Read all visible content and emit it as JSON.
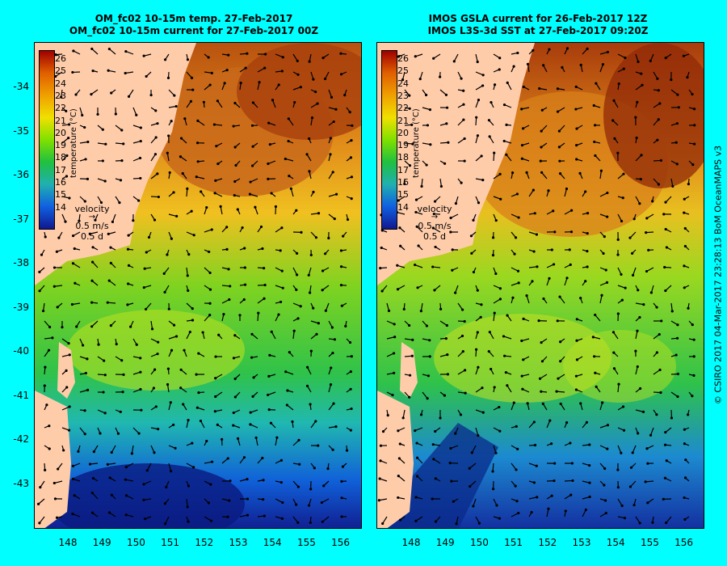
{
  "left_title": [
    "OM_fc02 10-15m temp. 27-Feb-2017",
    "OM_fc02 10-15m current for 27-Feb-2017 00Z"
  ],
  "right_title": [
    "IMOS GSLA current for 26-Feb-2017 12Z",
    "IMOS L3S-3d SST at 27-Feb-2017 09:20Z"
  ],
  "lat_ticks": [
    "-34",
    "-35",
    "-36",
    "-37",
    "-38",
    "-39",
    "-40",
    "-41",
    "-42",
    "-43"
  ],
  "lon_ticks": [
    "148",
    "149",
    "150",
    "151",
    "152",
    "153",
    "154",
    "155",
    "156"
  ],
  "colorbar": {
    "title": "temperature (°C)",
    "ticks": [
      "26",
      "25",
      "24",
      "23",
      "22",
      "21",
      "20",
      "19",
      "18",
      "17",
      "16",
      "15",
      "14"
    ]
  },
  "velocity_legend": {
    "title": "velocity",
    "speed": "0.5 m/s",
    "time": "0.5 d"
  },
  "credit": "© CSIRO 2017   04-Mar-2017 23:28:13 BoM OceanMAPS v3",
  "colors": {
    "background": "#00ffff",
    "land": "#ffccaa",
    "warm": "#d2691e",
    "cool": "#1e3a8a"
  }
}
